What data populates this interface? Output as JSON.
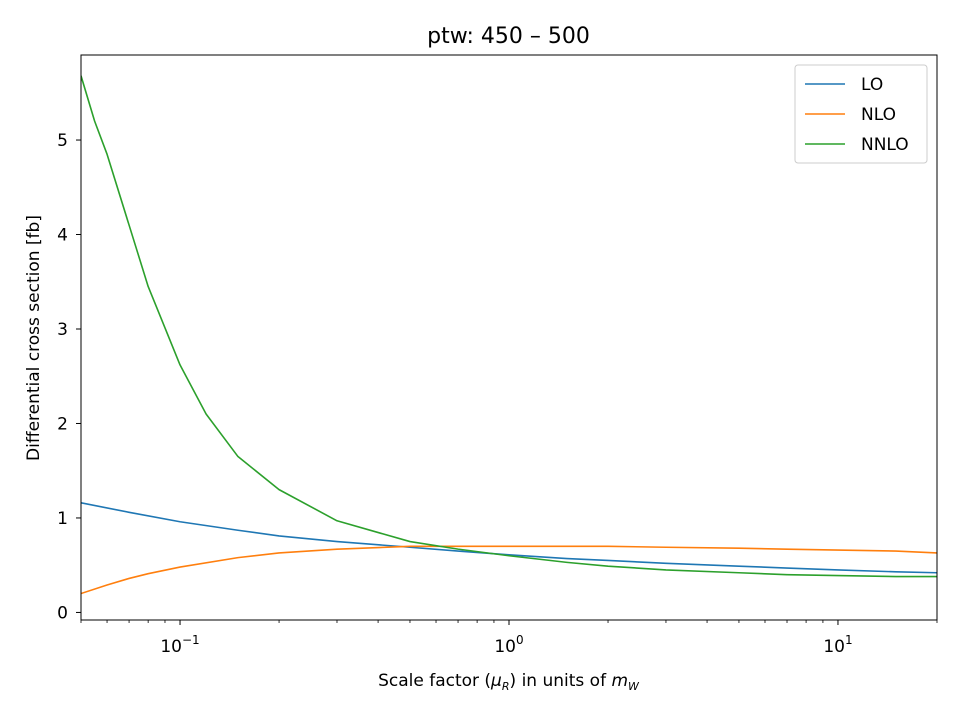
{
  "chart_data": {
    "type": "line",
    "title": "ptw: 450 – 500",
    "xlabel_prefix": "Scale factor (",
    "xlabel_mu": "μ",
    "xlabel_mu_sub": "R",
    "xlabel_mid": ") in units of ",
    "xlabel_m": "m",
    "xlabel_m_sub": "W",
    "ylabel": "Differential cross section [fb]",
    "xscale": "log",
    "xlim": [
      0.05,
      20
    ],
    "ylim": [
      -0.08,
      5.9
    ],
    "grid": false,
    "legend_position": "top-right",
    "x_tick_labels": [
      {
        "value": 0.1,
        "base": "10",
        "exp": "−1"
      },
      {
        "value": 1,
        "base": "10",
        "exp": "0"
      },
      {
        "value": 10,
        "base": "10",
        "exp": "1"
      }
    ],
    "y_ticks": [
      0,
      1,
      2,
      3,
      4,
      5
    ],
    "series": [
      {
        "name": "LO",
        "color": "#1f77b4",
        "x": [
          0.05,
          0.07,
          0.1,
          0.15,
          0.2,
          0.3,
          0.5,
          0.7,
          1,
          1.5,
          2,
          3,
          5,
          7,
          10,
          15,
          20
        ],
        "y": [
          1.16,
          1.06,
          0.96,
          0.87,
          0.81,
          0.75,
          0.69,
          0.65,
          0.61,
          0.57,
          0.55,
          0.52,
          0.49,
          0.47,
          0.45,
          0.43,
          0.42
        ]
      },
      {
        "name": "NLO",
        "color": "#ff7f0e",
        "x": [
          0.05,
          0.06,
          0.07,
          0.08,
          0.1,
          0.15,
          0.2,
          0.3,
          0.5,
          0.7,
          1,
          1.5,
          2,
          3,
          5,
          7,
          10,
          15,
          20
        ],
        "y": [
          0.2,
          0.29,
          0.36,
          0.41,
          0.48,
          0.58,
          0.63,
          0.67,
          0.7,
          0.7,
          0.7,
          0.7,
          0.7,
          0.69,
          0.68,
          0.67,
          0.66,
          0.65,
          0.63
        ]
      },
      {
        "name": "NNLO",
        "color": "#2ca02c",
        "x": [
          0.05,
          0.055,
          0.06,
          0.07,
          0.08,
          0.1,
          0.12,
          0.15,
          0.2,
          0.3,
          0.5,
          0.7,
          1,
          1.5,
          2,
          3,
          5,
          7,
          10,
          15,
          20
        ],
        "y": [
          5.68,
          5.2,
          4.85,
          4.1,
          3.45,
          2.62,
          2.1,
          1.65,
          1.3,
          0.97,
          0.75,
          0.67,
          0.6,
          0.53,
          0.49,
          0.45,
          0.42,
          0.4,
          0.39,
          0.38,
          0.38
        ]
      }
    ]
  }
}
